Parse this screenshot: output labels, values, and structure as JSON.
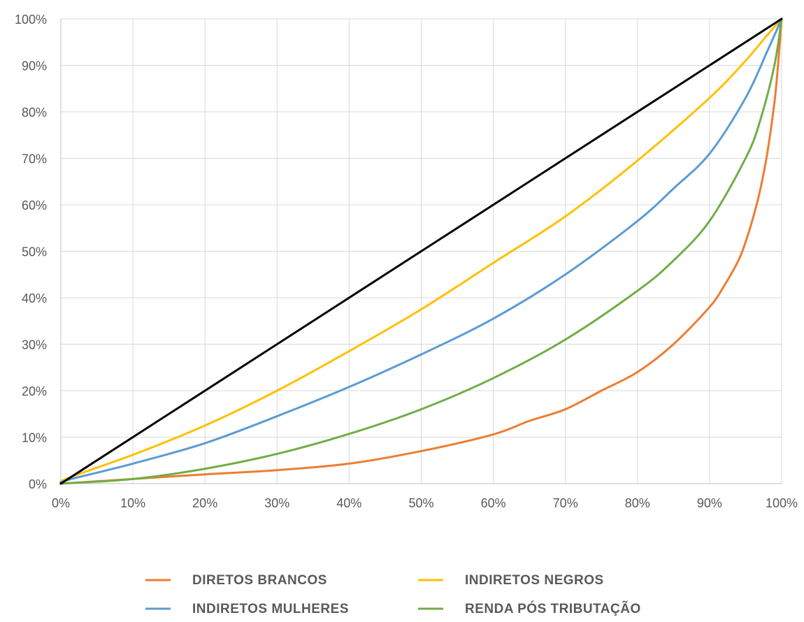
{
  "chart_data": {
    "type": "line",
    "title": "",
    "xlabel": "",
    "ylabel": "",
    "xlim": [
      0,
      100
    ],
    "ylim": [
      0,
      100
    ],
    "grid": true,
    "legend_position": "bottom",
    "x_ticks": [
      "0%",
      "10%",
      "20%",
      "30%",
      "40%",
      "50%",
      "60%",
      "70%",
      "80%",
      "90%",
      "100%"
    ],
    "y_ticks": [
      "0%",
      "10%",
      "20%",
      "30%",
      "40%",
      "50%",
      "60%",
      "70%",
      "80%",
      "90%",
      "100%"
    ],
    "series": [
      {
        "name": "",
        "color": "#000000",
        "in_legend": false,
        "x": [
          0,
          100
        ],
        "y": [
          0,
          100
        ]
      },
      {
        "name": "DIRETOS BRANCOS",
        "color": "#ED7D31",
        "in_legend": true,
        "x": [
          0,
          10,
          20,
          30,
          40,
          50,
          60,
          65,
          70,
          75,
          80,
          85,
          90,
          92,
          94,
          95,
          96,
          97,
          98,
          99,
          99.5,
          100
        ],
        "y": [
          0,
          1,
          2,
          2.9,
          4.3,
          7,
          10.6,
          13.5,
          16,
          20,
          24,
          30,
          38,
          42.5,
          48,
          52,
          57,
          63,
          71,
          82,
          90,
          100
        ]
      },
      {
        "name": "INDIRETOS NEGROS",
        "color": "#FFC000",
        "in_legend": true,
        "x": [
          0,
          1,
          10,
          20,
          30,
          40,
          50,
          60,
          70,
          80,
          90,
          95,
          98,
          100
        ],
        "y": [
          0,
          1.2,
          6.2,
          12.5,
          20,
          28.5,
          37.5,
          47.5,
          57.5,
          69.5,
          83,
          91,
          96.5,
          100
        ]
      },
      {
        "name": "INDIRETOS MULHERES",
        "color": "#5B9BD5",
        "in_legend": true,
        "x": [
          0,
          1,
          10,
          20,
          30,
          40,
          50,
          60,
          70,
          80,
          85,
          90,
          95,
          98,
          100
        ],
        "y": [
          0,
          0.8,
          4.3,
          8.7,
          14.5,
          20.8,
          27.8,
          35.5,
          45,
          56.5,
          63.5,
          71,
          83,
          93,
          100
        ]
      },
      {
        "name": "RENDA PÓS TRIBUTAÇÃO",
        "color": "#70AD47",
        "in_legend": true,
        "x": [
          0,
          10,
          20,
          30,
          40,
          50,
          60,
          70,
          80,
          85,
          90,
          95,
          97,
          99,
          100
        ],
        "y": [
          0,
          1,
          3.2,
          6.4,
          10.7,
          16,
          22.7,
          31,
          41.5,
          48,
          56.5,
          70,
          78,
          90,
          100
        ]
      }
    ]
  }
}
